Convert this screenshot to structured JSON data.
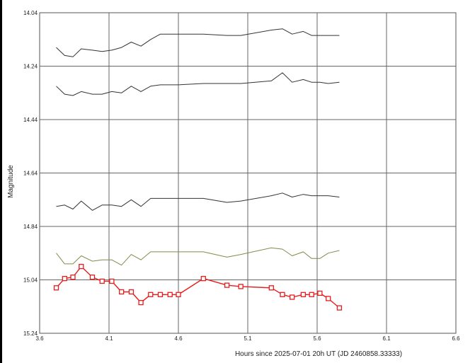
{
  "chart_data": {
    "type": "line",
    "title": "",
    "xlabel": "Hours since 2025-07-01 20h UT (JD 2460858.33333)",
    "ylabel": "Magnitude",
    "xlim": [
      3.6,
      6.6
    ],
    "ylim": [
      14.04,
      15.24
    ],
    "y_inverted": false,
    "grid": true,
    "x_ticks": [
      "3.6",
      "4.1",
      "4.6",
      "5.1",
      "5.6",
      "6.1",
      "6.6"
    ],
    "y_ticks": [
      "14.04",
      "14.24",
      "14.44",
      "14.64",
      "14.84",
      "15.04",
      "15.24"
    ],
    "x": [
      3.72,
      3.78,
      3.84,
      3.9,
      3.98,
      4.05,
      4.12,
      4.19,
      4.26,
      4.33,
      4.4,
      4.47,
      4.54,
      4.6,
      4.78,
      4.95,
      5.05,
      5.27,
      5.35,
      5.42,
      5.5,
      5.56,
      5.62,
      5.68,
      5.76
    ],
    "series": [
      {
        "color": "#333333",
        "marker": "none",
        "values": [
          14.17,
          14.2,
          14.205,
          14.175,
          14.18,
          14.185,
          14.18,
          14.17,
          14.15,
          14.165,
          14.14,
          14.12,
          14.12,
          14.12,
          14.12,
          14.125,
          14.125,
          14.105,
          14.1,
          14.12,
          14.11,
          14.125,
          14.125,
          14.125,
          14.125
        ]
      },
      {
        "color": "#333333",
        "marker": "none",
        "values": [
          14.315,
          14.345,
          14.35,
          14.335,
          14.345,
          14.345,
          14.335,
          14.34,
          14.315,
          14.335,
          14.315,
          14.31,
          14.31,
          14.31,
          14.305,
          14.305,
          14.305,
          14.295,
          14.265,
          14.3,
          14.29,
          14.3,
          14.3,
          14.305,
          14.3
        ]
      },
      {
        "color": "#333333",
        "marker": "none",
        "values": [
          14.765,
          14.76,
          14.775,
          14.745,
          14.78,
          14.76,
          14.76,
          14.765,
          14.74,
          14.765,
          14.735,
          14.735,
          14.735,
          14.735,
          14.735,
          14.75,
          14.745,
          14.725,
          14.715,
          14.73,
          14.72,
          14.725,
          14.725,
          14.725,
          14.73
        ]
      },
      {
        "color": "#7f8c4a",
        "marker": "none",
        "values": [
          14.94,
          14.98,
          14.98,
          14.95,
          14.97,
          14.965,
          14.965,
          14.985,
          14.945,
          14.965,
          14.935,
          14.935,
          14.935,
          14.935,
          14.935,
          14.955,
          14.945,
          14.92,
          14.925,
          14.95,
          14.935,
          14.96,
          14.96,
          14.94,
          14.93
        ]
      },
      {
        "color": "#e81c1c",
        "marker": "square",
        "values": [
          15.07,
          15.035,
          15.03,
          14.99,
          15.03,
          15.045,
          15.045,
          15.085,
          15.085,
          15.125,
          15.095,
          15.095,
          15.095,
          15.095,
          15.035,
          15.06,
          15.065,
          15.07,
          15.095,
          15.105,
          15.095,
          15.095,
          15.09,
          15.11,
          15.145
        ]
      }
    ]
  }
}
